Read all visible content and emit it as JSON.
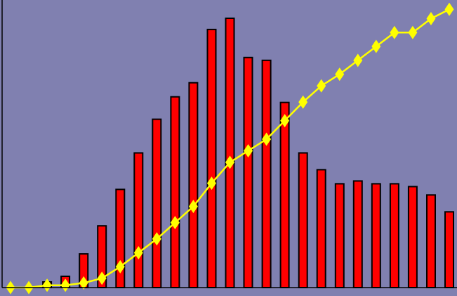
{
  "chart_data": {
    "type": "bar",
    "title": "",
    "xlabel": "",
    "ylabel": "",
    "grid": false,
    "legend": "none",
    "colors": {
      "background": "#8080b0",
      "bar_fill": "#ff0000",
      "bar_stroke": "#000000",
      "line": "#ffff00",
      "axis": "#000000"
    },
    "series": [
      {
        "type": "bar",
        "values": [
          0,
          0,
          2,
          4,
          12,
          22,
          35,
          48,
          60,
          68,
          73,
          92,
          96,
          82,
          81,
          66,
          48,
          42,
          37,
          38,
          37,
          37,
          36,
          33,
          27
        ]
      },
      {
        "type": "line",
        "values": [
          0,
          0,
          1,
          1,
          2,
          4,
          9,
          15,
          21,
          28,
          35,
          45,
          54,
          59,
          64,
          72,
          80,
          87,
          92,
          98,
          104,
          110,
          110,
          116,
          120
        ]
      }
    ],
    "bar_ylim": [
      0,
      100
    ],
    "line_ylim": [
      0,
      121
    ]
  }
}
